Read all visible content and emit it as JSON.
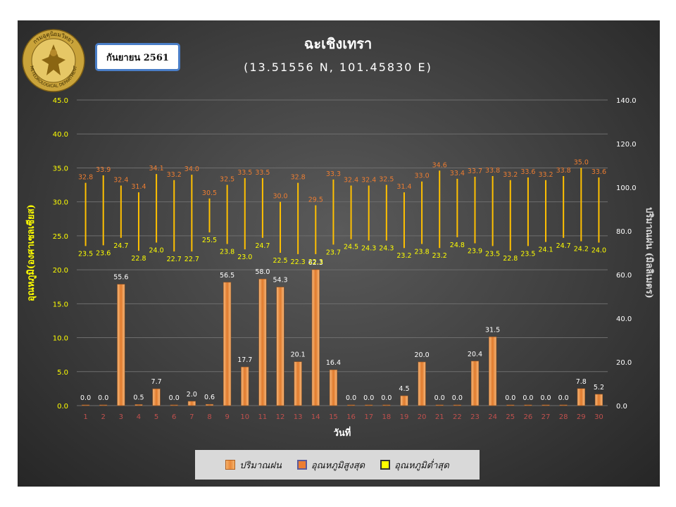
{
  "header": {
    "title": "ฉะเชิงเทรา",
    "coords": "(13.51556 N, 101.45830 E)",
    "month": "กันยายน 2561",
    "logo_text": "กรมอุตุนิยมวิทยา METEOROLOGICAL DEPARTMENT"
  },
  "colors": {
    "rain": "#f08a3c",
    "tmax_label": "#ed7d31",
    "tmin_line": "#ffc000",
    "left_axis": "#ffff00",
    "right_axis": "#ffffff",
    "x_ticks": "#c0504d"
  },
  "chart_data": {
    "type": "bar",
    "x": [
      1,
      2,
      3,
      4,
      5,
      6,
      7,
      8,
      9,
      10,
      11,
      12,
      13,
      14,
      15,
      16,
      17,
      18,
      19,
      20,
      21,
      22,
      23,
      24,
      25,
      26,
      27,
      28,
      29,
      30
    ],
    "xlabel": "วันที่",
    "ylabel_left": "อุณหภูมิ(องศาเซลเซียส)",
    "ylabel_right": "ปริมาณฝน (มิลลิเมตร)",
    "ylim_left": [
      0,
      45
    ],
    "yticks_left": [
      "0.0",
      "5.0",
      "10.0",
      "15.0",
      "20.0",
      "25.0",
      "30.0",
      "35.0",
      "40.0",
      "45.0"
    ],
    "ylim_right": [
      0,
      140
    ],
    "yticks_right": [
      "0.0",
      "20.0",
      "40.0",
      "60.0",
      "80.0",
      "100.0",
      "120.0",
      "140.0"
    ],
    "grid": true,
    "legend_position": "bottom",
    "series": [
      {
        "name": "ปริมาณฝน",
        "type": "bar",
        "axis": "right",
        "values": [
          0.0,
          0.0,
          55.6,
          0.5,
          7.7,
          0.0,
          2.0,
          0.6,
          56.5,
          17.7,
          58.0,
          54.3,
          20.1,
          62.3,
          16.4,
          0.0,
          0.0,
          0.0,
          4.5,
          20.0,
          0.0,
          0.0,
          20.4,
          31.5,
          0.0,
          0.0,
          0.0,
          0.0,
          7.8,
          5.2
        ]
      },
      {
        "name": "อุณหภูมิสูงสุด",
        "type": "range-high",
        "axis": "left",
        "values": [
          32.8,
          33.9,
          32.4,
          31.4,
          34.1,
          33.2,
          34.0,
          30.5,
          32.5,
          33.5,
          33.5,
          30.0,
          32.8,
          29.5,
          33.3,
          32.4,
          32.4,
          32.5,
          31.4,
          33.0,
          34.6,
          33.4,
          33.7,
          33.8,
          33.2,
          33.6,
          33.2,
          33.8,
          35.0,
          33.6
        ]
      },
      {
        "name": "อุณหภูมิต่ำสุด",
        "type": "range-low",
        "axis": "left",
        "values": [
          23.5,
          23.6,
          24.7,
          22.8,
          24.0,
          22.7,
          22.7,
          25.5,
          23.8,
          23.0,
          24.7,
          22.5,
          22.3,
          22.3,
          23.7,
          24.5,
          24.3,
          24.3,
          23.2,
          23.8,
          23.2,
          24.8,
          23.9,
          23.5,
          22.8,
          23.5,
          24.1,
          24.7,
          24.2,
          24.0
        ]
      }
    ]
  }
}
